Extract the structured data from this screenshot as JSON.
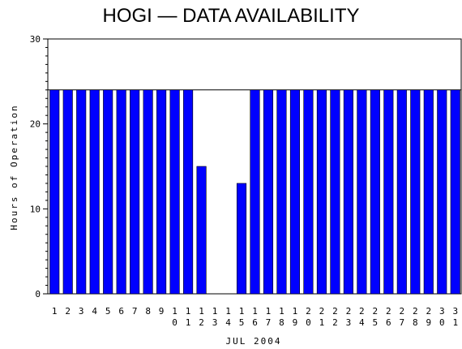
{
  "chart_data": {
    "type": "bar",
    "title": "HOGI — DATA AVAILABILITY",
    "xlabel": "JUL 2004",
    "ylabel": "Hours of Operation",
    "ylim": [
      0,
      30
    ],
    "yticks": [
      0,
      10,
      20,
      30
    ],
    "categories": [
      "1",
      "2",
      "3",
      "4",
      "5",
      "6",
      "7",
      "8",
      "9",
      "10",
      "11",
      "12",
      "13",
      "14",
      "15",
      "16",
      "17",
      "18",
      "19",
      "20",
      "21",
      "22",
      "23",
      "24",
      "25",
      "26",
      "27",
      "28",
      "29",
      "30",
      "31"
    ],
    "values": [
      24,
      24,
      24,
      24,
      24,
      24,
      24,
      24,
      24,
      24,
      24,
      15,
      0,
      0,
      13,
      24,
      24,
      24,
      24,
      24,
      24,
      24,
      24,
      24,
      24,
      24,
      24,
      24,
      24,
      24,
      24
    ],
    "reference_line": 24,
    "bar_color": "#0000ff",
    "grid": false
  }
}
